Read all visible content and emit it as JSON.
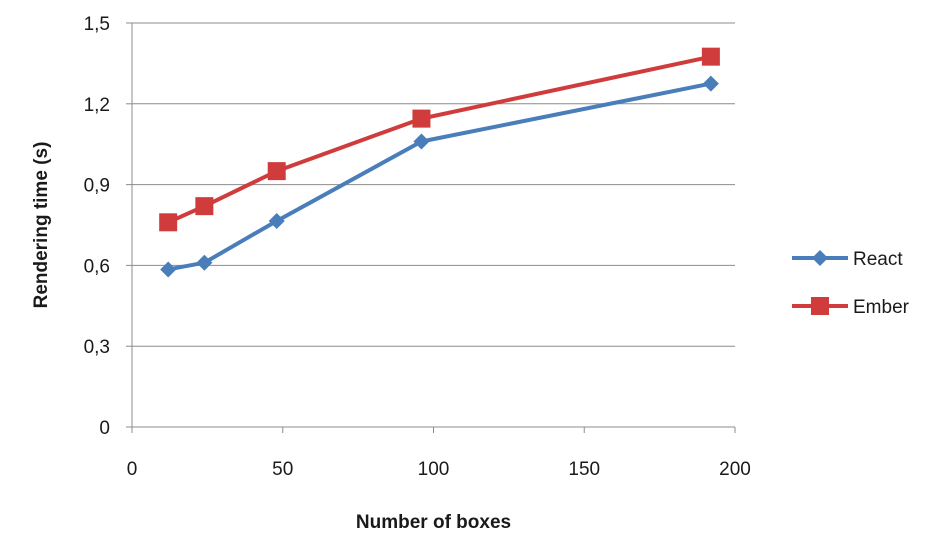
{
  "chart_data": {
    "type": "line",
    "xlabel": "Number of boxes",
    "ylabel": "Rendering time (s)",
    "xlim": [
      0,
      200
    ],
    "ylim": [
      0,
      1.5
    ],
    "x_ticks": [
      0,
      50,
      100,
      150,
      200
    ],
    "x_tick_labels": [
      "0",
      "50",
      "100",
      "150",
      "200"
    ],
    "y_ticks": [
      0,
      0.3,
      0.6,
      0.9,
      1.2,
      1.5
    ],
    "y_tick_labels": [
      "0",
      "0,3",
      "0,6",
      "0,9",
      "1,2",
      "1,5"
    ],
    "grid": "horizontal",
    "legend_position": "right",
    "series": [
      {
        "name": "React",
        "color": "#4a7ebb",
        "marker": "diamond",
        "x": [
          12,
          24,
          48,
          96,
          192
        ],
        "y": [
          0.585,
          0.61,
          0.765,
          1.06,
          1.275
        ]
      },
      {
        "name": "Ember",
        "color": "#d03c3c",
        "marker": "square",
        "x": [
          12,
          24,
          48,
          96,
          192
        ],
        "y": [
          0.76,
          0.82,
          0.95,
          1.145,
          1.375
        ]
      }
    ]
  }
}
